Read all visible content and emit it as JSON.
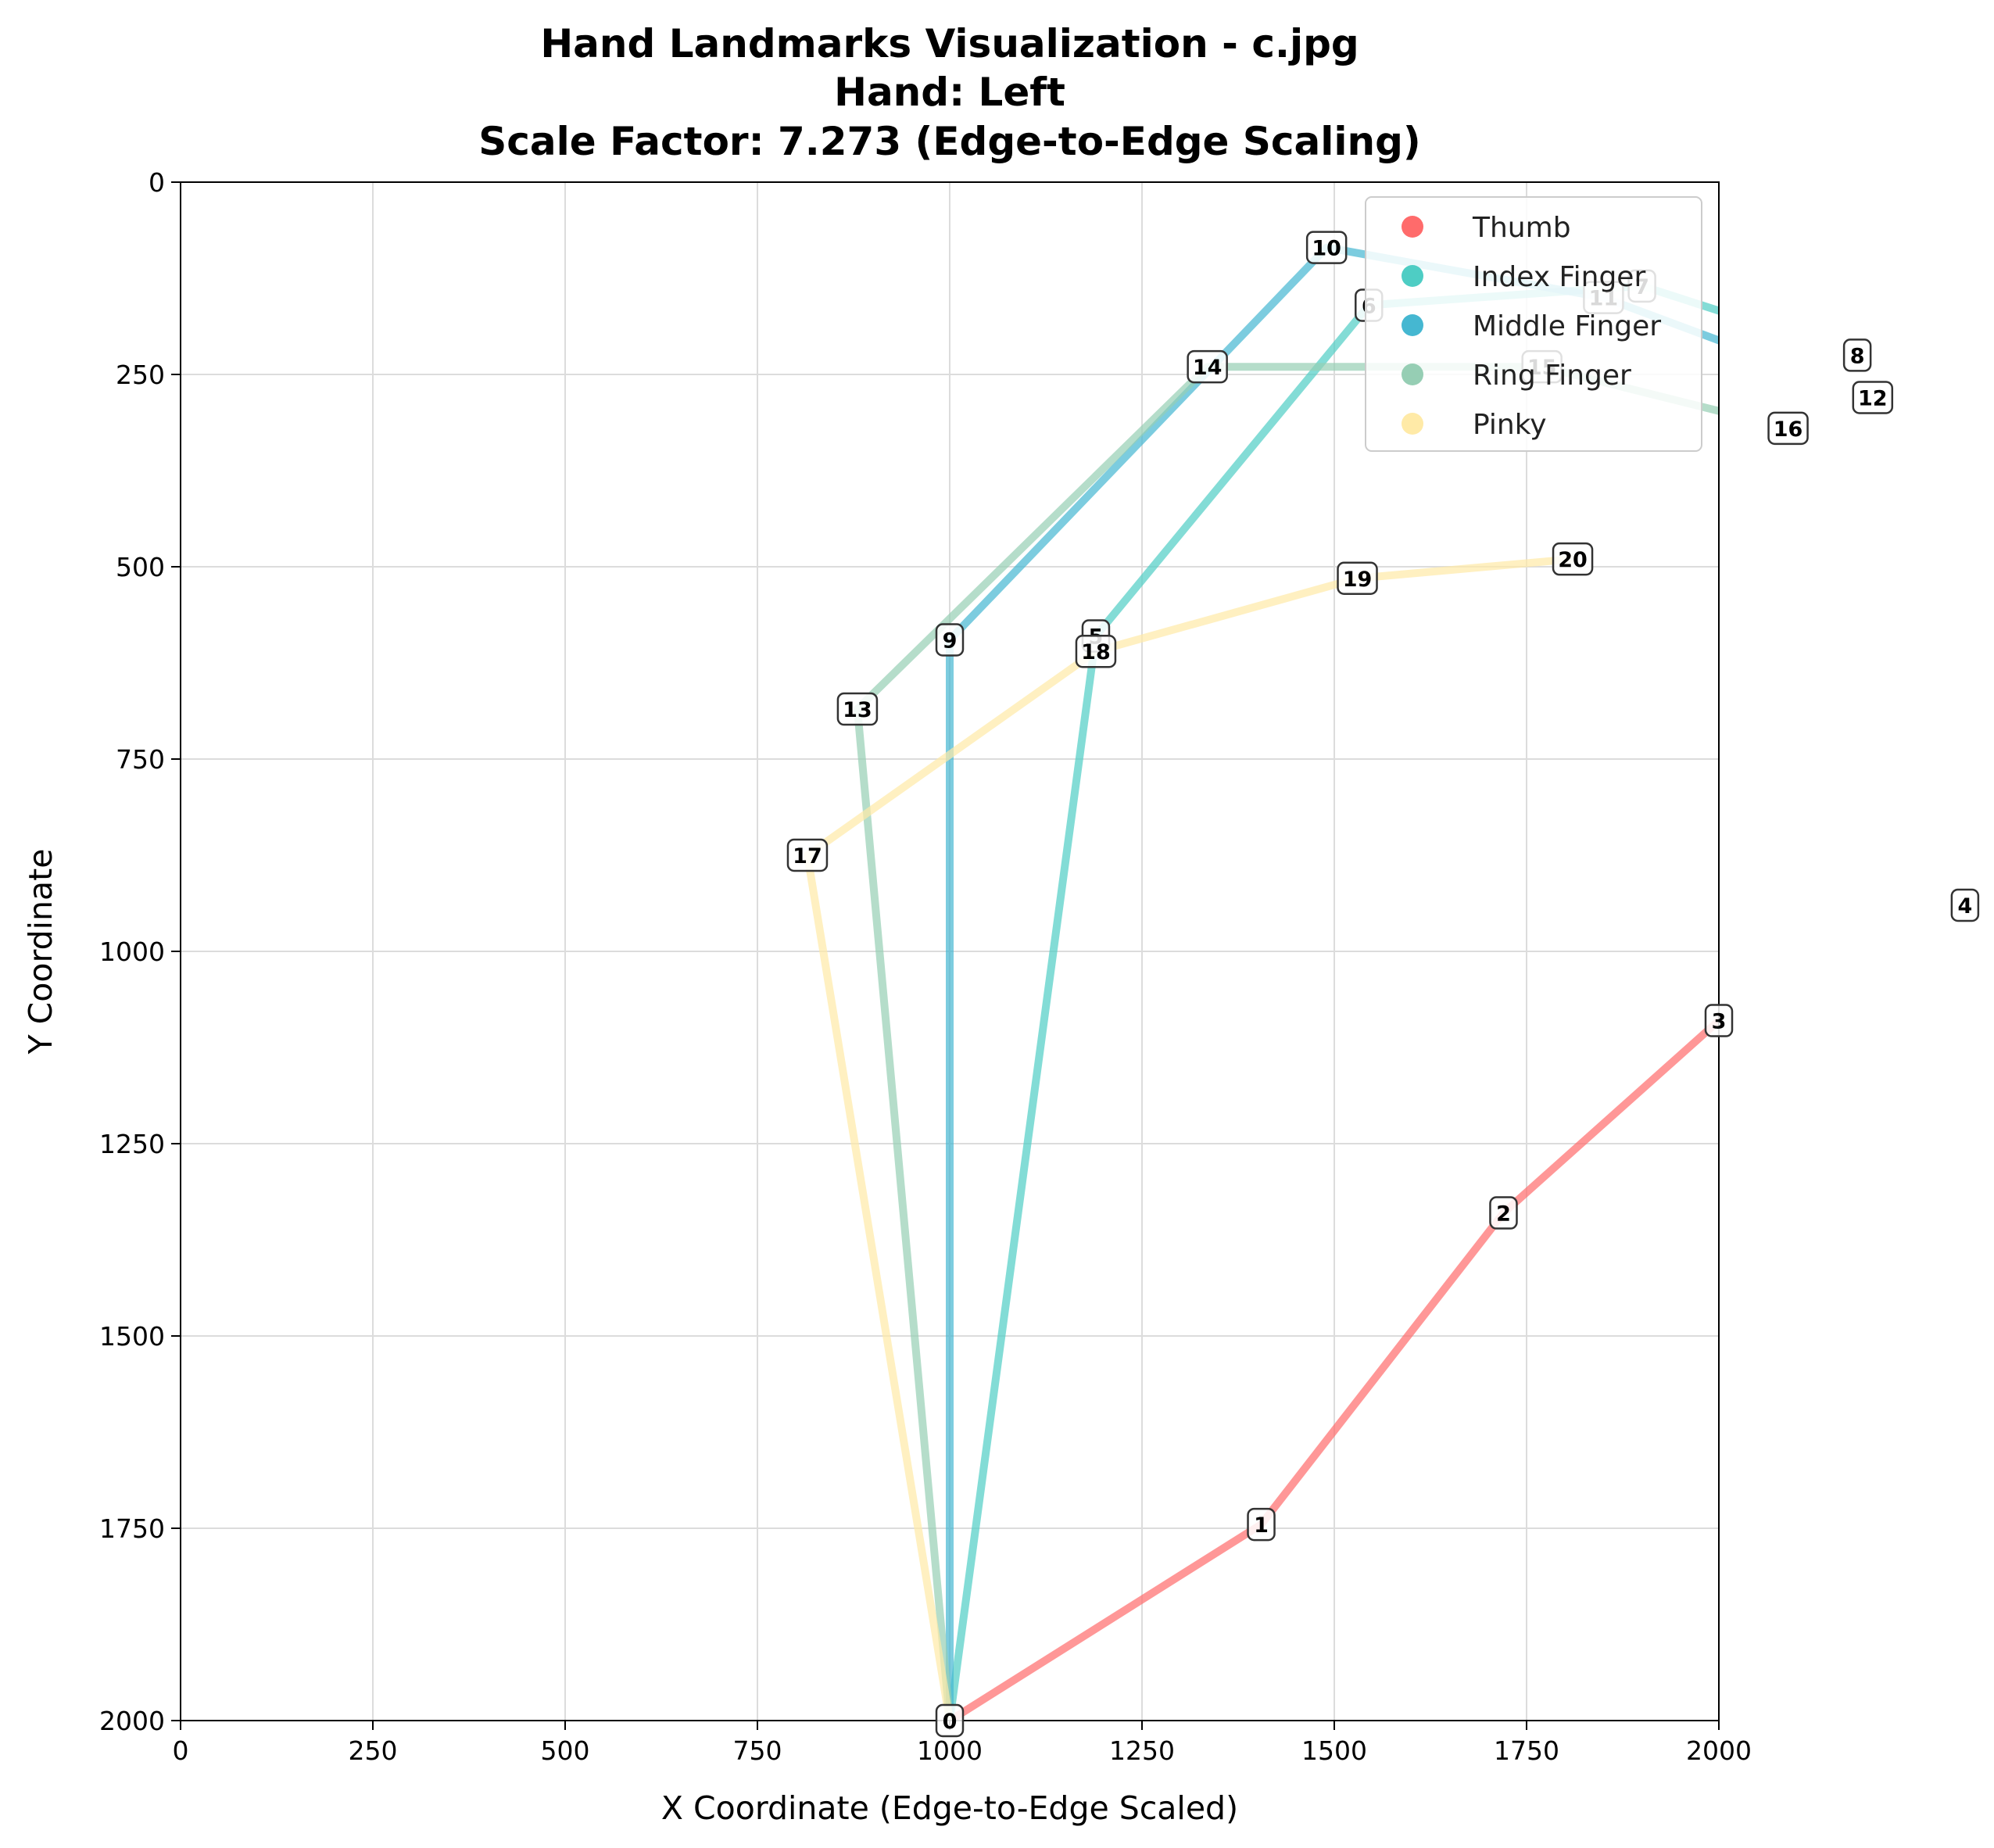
{
  "chart_data": {
    "type": "line",
    "title_lines": [
      "Hand Landmarks Visualization - c.jpg",
      "Hand: Left",
      "Scale Factor: 7.273 (Edge-to-Edge Scaling)"
    ],
    "xlabel": "X Coordinate (Edge-to-Edge Scaled)",
    "ylabel": "Y Coordinate",
    "xlim": [
      0,
      2000
    ],
    "ylim": [
      2000,
      0
    ],
    "y_inverted": true,
    "xticks": [
      "0",
      "250",
      "500",
      "750",
      "1000",
      "1250",
      "1500",
      "1750",
      "2000"
    ],
    "yticks": [
      "0",
      "250",
      "500",
      "750",
      "1000",
      "1250",
      "1500",
      "1750",
      "2000"
    ],
    "grid": true,
    "legend_position": "top-right",
    "landmarks": [
      {
        "id": "0",
        "x": 1000,
        "y": 2000
      },
      {
        "id": "1",
        "x": 1405,
        "y": 1745
      },
      {
        "id": "2",
        "x": 1720,
        "y": 1340
      },
      {
        "id": "3",
        "x": 2000,
        "y": 1090
      },
      {
        "id": "4",
        "x": 2320,
        "y": 940
      },
      {
        "id": "5",
        "x": 1190,
        "y": 590
      },
      {
        "id": "6",
        "x": 1545,
        "y": 160
      },
      {
        "id": "7",
        "x": 1900,
        "y": 135
      },
      {
        "id": "8",
        "x": 2180,
        "y": 225
      },
      {
        "id": "9",
        "x": 1000,
        "y": 595
      },
      {
        "id": "10",
        "x": 1490,
        "y": 85
      },
      {
        "id": "11",
        "x": 1850,
        "y": 150
      },
      {
        "id": "12",
        "x": 2200,
        "y": 280
      },
      {
        "id": "13",
        "x": 880,
        "y": 685
      },
      {
        "id": "14",
        "x": 1335,
        "y": 240
      },
      {
        "id": "15",
        "x": 1770,
        "y": 240
      },
      {
        "id": "16",
        "x": 2090,
        "y": 320
      },
      {
        "id": "17",
        "x": 815,
        "y": 875
      },
      {
        "id": "18",
        "x": 1190,
        "y": 610
      },
      {
        "id": "19",
        "x": 1530,
        "y": 515
      },
      {
        "id": "20",
        "x": 1810,
        "y": 490
      }
    ],
    "series": [
      {
        "name": "Thumb",
        "color": "#FF6B6B",
        "landmarks": [
          0,
          1,
          2,
          3,
          4
        ]
      },
      {
        "name": "Index Finger",
        "color": "#4ECDC4",
        "landmarks": [
          0,
          5,
          6,
          7,
          8
        ]
      },
      {
        "name": "Middle Finger",
        "color": "#45B7D1",
        "landmarks": [
          0,
          9,
          10,
          11,
          12
        ]
      },
      {
        "name": "Ring Finger",
        "color": "#96CEB4",
        "landmarks": [
          0,
          13,
          14,
          15,
          16
        ]
      },
      {
        "name": "Pinky",
        "color": "#FFEAA7",
        "landmarks": [
          0,
          17,
          18,
          19,
          20
        ]
      }
    ]
  }
}
